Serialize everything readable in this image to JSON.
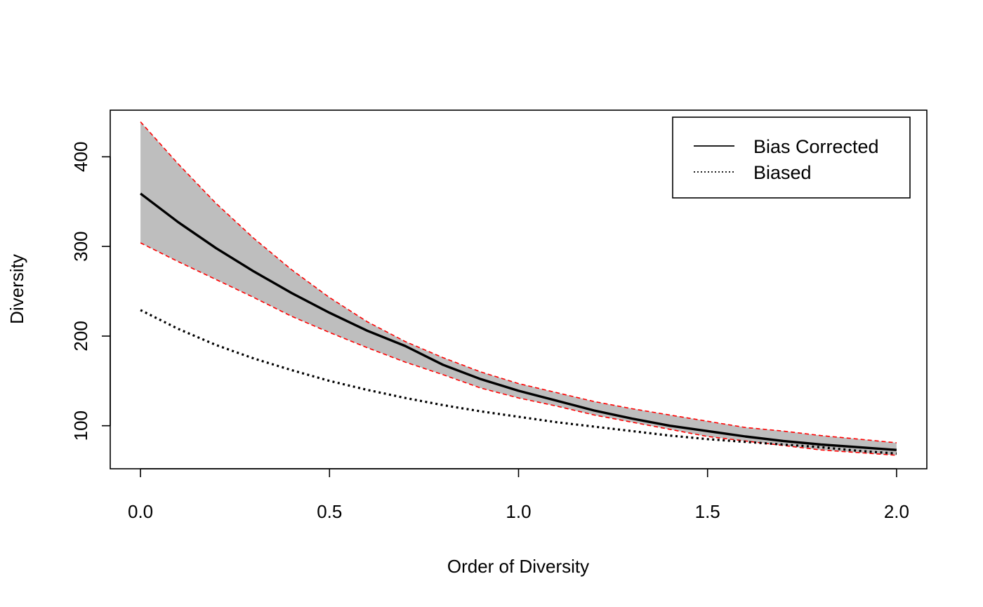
{
  "chart_data": {
    "type": "line",
    "title": "",
    "xlabel": "Order of Diversity",
    "ylabel": "Diversity",
    "xlim": [
      -0.08,
      2.08
    ],
    "ylim": [
      52,
      452
    ],
    "xticks": [
      0.0,
      0.5,
      1.0,
      1.5,
      2.0
    ],
    "xtick_labels": [
      "0.0",
      "0.5",
      "1.0",
      "1.5",
      "2.0"
    ],
    "yticks": [
      100,
      200,
      300,
      400
    ],
    "ytick_labels": [
      "100",
      "200",
      "300",
      "400"
    ],
    "grid": false,
    "legend_position": "top-right",
    "x": [
      0.0,
      0.1,
      0.2,
      0.3,
      0.4,
      0.5,
      0.6,
      0.7,
      0.8,
      0.9,
      1.0,
      1.1,
      1.2,
      1.3,
      1.4,
      1.5,
      1.6,
      1.7,
      1.8,
      1.9,
      2.0
    ],
    "series": [
      {
        "name": "Bias Corrected",
        "line_style": "solid",
        "color": "#000000",
        "values": [
          359,
          327,
          298,
          272,
          248,
          226,
          206,
          189,
          168,
          152,
          139,
          128,
          117,
          108,
          100,
          94,
          88,
          83,
          79,
          76,
          73
        ]
      },
      {
        "name": "Biased",
        "line_style": "dotted",
        "color": "#000000",
        "values": [
          229,
          208,
          190,
          175,
          162,
          150,
          140,
          131,
          123,
          116,
          110,
          104,
          99,
          94,
          89,
          85,
          82,
          79,
          76,
          72,
          69
        ]
      }
    ],
    "confidence_band": {
      "fill_color": "#bebebe",
      "border_color": "#ff0000",
      "border_style": "dashed",
      "upper": [
        439,
        392,
        348,
        309,
        274,
        243,
        216,
        194,
        176,
        160,
        147,
        137,
        127,
        119,
        112,
        105,
        98,
        94,
        89,
        85,
        81
      ],
      "lower": [
        304,
        283,
        263,
        243,
        222,
        204,
        187,
        171,
        157,
        142,
        131,
        122,
        112,
        104,
        96,
        88,
        83,
        78,
        73,
        70,
        67
      ]
    }
  }
}
